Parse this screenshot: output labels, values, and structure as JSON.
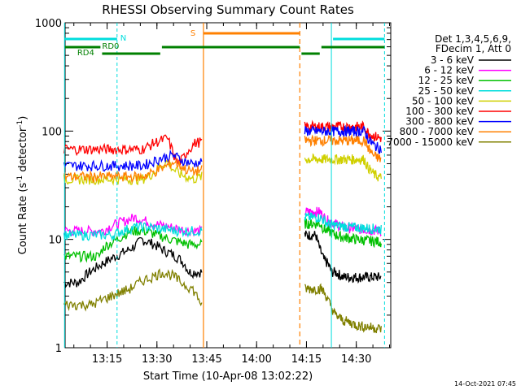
{
  "chart_data": {
    "type": "line",
    "title": "RHESSI Observing Summary Count Rates",
    "xlabel": "Start Time (10-Apr-08 13:02:22)",
    "ylabel_main": "Count Rate (s",
    "ylabel_sup1": "-1",
    "ylabel_mid": " detector",
    "ylabel_sup2": "-1",
    "ylabel_end": ")",
    "y_scale": "log",
    "xlim": [
      "13:02",
      "14:40"
    ],
    "ylim": [
      1,
      1000
    ],
    "x_ticks": [
      "13:15",
      "13:30",
      "13:45",
      "14:00",
      "14:15",
      "14:30"
    ],
    "y_ticks": [
      "1",
      "10",
      "100",
      "1000"
    ],
    "legend": {
      "placement": "right",
      "header": [
        "Det 1,3,4,5,6,9,",
        "FDecim 1, Att 0"
      ]
    },
    "series": [
      {
        "name": "3 - 6 keV",
        "color": "#000000",
        "seg1": [
          [
            3.3,
            4
          ],
          [
            6,
            5
          ],
          [
            9,
            6
          ],
          [
            12,
            7
          ],
          [
            15,
            8
          ],
          [
            17,
            9
          ],
          [
            18,
            10
          ],
          [
            21,
            9
          ],
          [
            23,
            8
          ],
          [
            26,
            7
          ],
          [
            28,
            6
          ],
          [
            29,
            5
          ],
          [
            32,
            5
          ]
        ],
        "seg2": [
          [
            2.9,
            11
          ],
          [
            3.2,
            10
          ],
          [
            4,
            8
          ],
          [
            5,
            6.5
          ],
          [
            6,
            6
          ],
          [
            7,
            5
          ],
          [
            8,
            5
          ],
          [
            10,
            4.5
          ],
          [
            13,
            4.5
          ],
          [
            20,
            4.5
          ]
        ]
      },
      {
        "name": "6 - 12 keV",
        "color": "#ff00ff",
        "seg1": [
          [
            8.8,
            12
          ],
          [
            10,
            13
          ],
          [
            12,
            14
          ],
          [
            14,
            15
          ],
          [
            16,
            16
          ],
          [
            18,
            15
          ],
          [
            20,
            14
          ],
          [
            24,
            13
          ],
          [
            28,
            12
          ],
          [
            31,
            12
          ]
        ],
        "seg2": [
          [
            4,
            18
          ],
          [
            5,
            16
          ],
          [
            6,
            15
          ],
          [
            8,
            14
          ],
          [
            10,
            13
          ],
          [
            14,
            12.5
          ],
          [
            20,
            12
          ]
        ]
      },
      {
        "name": "12 - 25 keV",
        "color": "#00c000",
        "seg1": [
          [
            8,
            7
          ],
          [
            8.5,
            8
          ],
          [
            9,
            8.5
          ],
          [
            12,
            10
          ],
          [
            15,
            12
          ],
          [
            18,
            12
          ],
          [
            21,
            11
          ],
          [
            24,
            10
          ],
          [
            28,
            9
          ],
          [
            31,
            9
          ]
        ],
        "seg2": [
          [
            4,
            14
          ],
          [
            5,
            12.5
          ],
          [
            6,
            12
          ],
          [
            8,
            11
          ],
          [
            10,
            10.5
          ],
          [
            14,
            10
          ],
          [
            20,
            9.5
          ]
        ]
      },
      {
        "name": "25 - 50 keV",
        "color": "#00dddd",
        "seg1": [
          [
            11,
            11
          ],
          [
            13,
            12
          ],
          [
            16,
            13
          ],
          [
            19,
            13
          ],
          [
            22,
            12.5
          ],
          [
            26,
            12
          ],
          [
            31,
            12
          ]
        ],
        "seg2": [
          [
            4,
            16
          ],
          [
            6,
            14
          ],
          [
            8,
            13.5
          ],
          [
            12,
            13
          ],
          [
            20,
            12.5
          ]
        ]
      },
      {
        "name": "50 - 100 keV",
        "color": "#d0d000",
        "seg1": [
          [
            36,
            36
          ],
          [
            39,
            38
          ],
          [
            42,
            42
          ],
          [
            45,
            48
          ],
          [
            48,
            52
          ],
          [
            51,
            44
          ],
          [
            54,
            40
          ],
          [
            57,
            38
          ],
          [
            60,
            36
          ],
          [
            64,
            38
          ]
        ],
        "seg2": [
          [
            50,
            55
          ],
          [
            52,
            48
          ],
          [
            54,
            45
          ],
          [
            56,
            42
          ],
          [
            58,
            40
          ],
          [
            61,
            38
          ],
          [
            64,
            37
          ]
        ]
      },
      {
        "name": "100 - 300 keV",
        "color": "#ff0000",
        "seg1": [
          [
            36,
            68
          ],
          [
            39,
            72
          ],
          [
            42,
            78
          ],
          [
            45,
            82
          ],
          [
            48,
            86
          ],
          [
            51,
            60
          ],
          [
            53,
            50
          ],
          [
            55,
            55
          ],
          [
            58,
            68
          ],
          [
            61,
            78
          ],
          [
            64,
            80
          ]
        ],
        "seg2": [
          [
            50,
            110
          ],
          [
            52,
            100
          ],
          [
            54,
            95
          ],
          [
            56,
            92
          ],
          [
            58,
            90
          ],
          [
            61,
            88
          ],
          [
            64,
            86
          ]
        ]
      },
      {
        "name": "300 - 800 keV",
        "color": "#0000ff",
        "seg1": [
          [
            36,
            48
          ],
          [
            39,
            50
          ],
          [
            42,
            53
          ],
          [
            45,
            56
          ],
          [
            48,
            58
          ],
          [
            51,
            60
          ],
          [
            54,
            55
          ],
          [
            57,
            52
          ],
          [
            60,
            50
          ],
          [
            64,
            52
          ]
        ],
        "seg2": [
          [
            50,
            100
          ],
          [
            52,
            90
          ],
          [
            54,
            82
          ],
          [
            56,
            78
          ],
          [
            58,
            74
          ],
          [
            61,
            71
          ],
          [
            64,
            69
          ]
        ]
      },
      {
        "name": "800 - 7000 keV",
        "color": "#ff8000",
        "seg1": [
          [
            36,
            38
          ],
          [
            39,
            40
          ],
          [
            42,
            42
          ],
          [
            45,
            45
          ],
          [
            48,
            48
          ],
          [
            51,
            52
          ],
          [
            54,
            48
          ],
          [
            57,
            44
          ],
          [
            60,
            42
          ],
          [
            64,
            44
          ]
        ],
        "seg2": [
          [
            50,
            82
          ],
          [
            52,
            74
          ],
          [
            54,
            68
          ],
          [
            56,
            63
          ],
          [
            58,
            59
          ],
          [
            61,
            57
          ],
          [
            64,
            55
          ]
        ]
      },
      {
        "name": "7000 - 15000 keV",
        "color": "#808000",
        "seg1": [
          [
            1.5,
            2.5
          ],
          [
            2.5,
            3
          ],
          [
            3.5,
            3.5
          ],
          [
            4.2,
            4.2
          ],
          [
            4.8,
            4.6
          ],
          [
            5.2,
            5
          ],
          [
            5.8,
            4.6
          ],
          [
            6.2,
            4
          ],
          [
            6.8,
            3.5
          ],
          [
            7.3,
            2.5
          ]
        ],
        "seg2": [
          [
            2.2,
            3.5
          ],
          [
            2.8,
            3
          ],
          [
            3.3,
            2.5
          ],
          [
            4,
            2
          ],
          [
            5,
            1.8
          ],
          [
            7,
            1.6
          ],
          [
            10,
            1.5
          ]
        ]
      }
    ],
    "annotations": {
      "n": "N",
      "s": "S",
      "rd0": "RD0",
      "rd4": "RD4"
    },
    "footer": "14-Oct-2021 07:45"
  }
}
